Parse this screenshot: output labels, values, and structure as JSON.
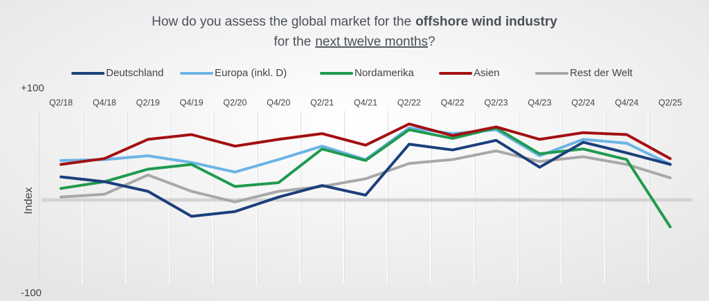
{
  "chart_data": {
    "type": "line",
    "title_line1": "How do you assess the global market for the",
    "title_line1_bold": "offshore wind industry",
    "title_line2": "for the",
    "title_line2_underlined": "next twelve months",
    "title_line2_end": "?",
    "y_label": "Index",
    "categories": [
      "Q2/18",
      "Q4/18",
      "Q2/19",
      "Q4/19",
      "Q2/20",
      "Q4/20",
      "Q2/21",
      "Q4/21",
      "Q2/22",
      "Q4/22",
      "Q2/23",
      "Q4/23",
      "Q2/24",
      "Q4/24",
      "Q2/25"
    ],
    "ylim": [
      -100,
      100
    ],
    "yticks": [
      {
        "value": 100,
        "label": "+100"
      },
      -100
    ],
    "legend": "top",
    "series": [
      {
        "name": "Deutschland",
        "color": "#1b3f7c",
        "values": [
          24,
          19,
          9,
          -17,
          -12,
          3,
          15,
          5,
          58,
          52,
          62,
          34,
          60,
          49,
          37
        ]
      },
      {
        "name": "Europa (inkl. D)",
        "color": "#6cb4e6",
        "values": [
          41,
          42,
          46,
          39,
          29,
          42,
          56,
          42,
          75,
          69,
          73,
          46,
          63,
          59,
          37
        ]
      },
      {
        "name": "Nordamerika",
        "color": "#1f9a50",
        "values": [
          12,
          19,
          32,
          37,
          14,
          18,
          53,
          41,
          73,
          64,
          75,
          48,
          53,
          42,
          -28
        ]
      },
      {
        "name": "Asien",
        "color": "#a30f12",
        "values": [
          37,
          43,
          63,
          68,
          56,
          63,
          69,
          57,
          79,
          67,
          76,
          63,
          70,
          68,
          43
        ]
      },
      {
        "name": "Rest der Welt",
        "color": "#a8a8a8",
        "values": [
          3,
          6,
          26,
          9,
          -2,
          9,
          14,
          22,
          38,
          42,
          51,
          40,
          45,
          37,
          23
        ]
      }
    ]
  }
}
